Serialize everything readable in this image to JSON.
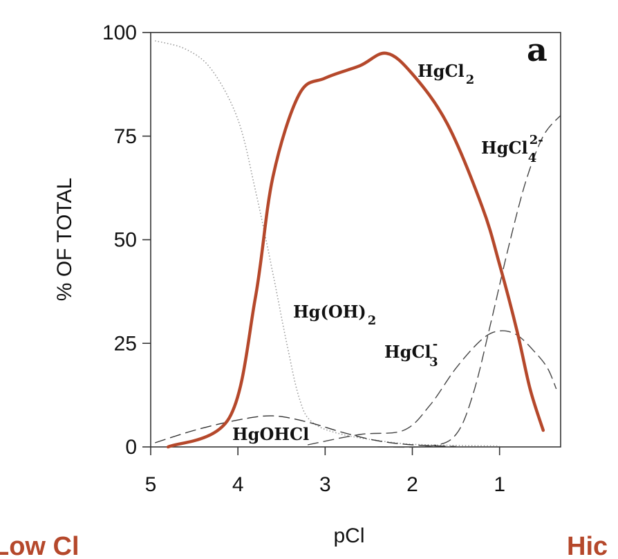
{
  "chart_data": {
    "type": "line",
    "panel_label": "a",
    "xlabel": "pCl",
    "ylabel": "% OF TOTAL",
    "xlim": [
      5.0,
      0.3
    ],
    "ylim": [
      0,
      100
    ],
    "x_ticks": [
      "5",
      "4",
      "3",
      "2",
      "1"
    ],
    "y_ticks": [
      "0",
      "25",
      "50",
      "75",
      "100"
    ],
    "x_reversed": true,
    "series": [
      {
        "name": "Hg(OH)2",
        "style": "dotted",
        "color": "#999999",
        "points": [
          [
            4.95,
            98
          ],
          [
            4.6,
            96
          ],
          [
            4.3,
            91
          ],
          [
            4.0,
            79
          ],
          [
            3.8,
            62
          ],
          [
            3.6,
            42
          ],
          [
            3.45,
            26
          ],
          [
            3.3,
            12
          ],
          [
            3.15,
            6
          ],
          [
            2.8,
            3
          ],
          [
            2.2,
            1
          ],
          [
            1.8,
            0.5
          ],
          [
            1.0,
            0.2
          ]
        ]
      },
      {
        "name": "HgOHCl",
        "style": "dashed",
        "color": "#333333",
        "points": [
          [
            4.95,
            1
          ],
          [
            4.5,
            4
          ],
          [
            4.0,
            6.5
          ],
          [
            3.6,
            7.5
          ],
          [
            3.2,
            6
          ],
          [
            2.8,
            3.5
          ],
          [
            2.4,
            1.5
          ],
          [
            2.0,
            0.5
          ],
          [
            1.5,
            0.1
          ]
        ]
      },
      {
        "name": "HgCl2",
        "style": "solid",
        "color": "#555555",
        "points": [
          [
            4.8,
            0
          ],
          [
            4.1,
            7
          ],
          [
            3.8,
            36
          ],
          [
            3.6,
            65
          ],
          [
            3.3,
            85
          ],
          [
            3.0,
            89
          ],
          [
            2.6,
            92
          ],
          [
            2.3,
            95
          ],
          [
            2.0,
            90
          ],
          [
            1.6,
            78
          ],
          [
            1.2,
            58
          ],
          [
            1.0,
            44
          ],
          [
            0.8,
            28
          ],
          [
            0.65,
            14
          ],
          [
            0.5,
            4
          ]
        ]
      },
      {
        "name": "HgCl3-",
        "style": "dashed",
        "color": "#444444",
        "points": [
          [
            3.2,
            0.5
          ],
          [
            2.6,
            3
          ],
          [
            2.1,
            4
          ],
          [
            1.8,
            10
          ],
          [
            1.5,
            19
          ],
          [
            1.2,
            26
          ],
          [
            1.0,
            28
          ],
          [
            0.8,
            27
          ],
          [
            0.6,
            23
          ],
          [
            0.45,
            19
          ],
          [
            0.35,
            14
          ]
        ]
      },
      {
        "name": "HgCl4 2-",
        "style": "dashed",
        "color": "#444444",
        "points": [
          [
            2.4,
            0
          ],
          [
            1.8,
            0.2
          ],
          [
            1.5,
            3
          ],
          [
            1.3,
            13
          ],
          [
            1.1,
            30
          ],
          [
            0.9,
            48
          ],
          [
            0.7,
            64
          ],
          [
            0.5,
            75
          ],
          [
            0.3,
            80
          ]
        ]
      },
      {
        "name": "HgCl2 highlight",
        "style": "solid",
        "color": "#b5482b",
        "points": [
          [
            4.8,
            0
          ],
          [
            4.1,
            7
          ],
          [
            3.8,
            36
          ],
          [
            3.6,
            65
          ],
          [
            3.3,
            85
          ],
          [
            3.0,
            89
          ],
          [
            2.6,
            92
          ],
          [
            2.3,
            95
          ],
          [
            2.0,
            90
          ],
          [
            1.6,
            78
          ],
          [
            1.2,
            58
          ],
          [
            1.0,
            44
          ],
          [
            0.8,
            28
          ],
          [
            0.65,
            14
          ],
          [
            0.5,
            4
          ]
        ]
      }
    ],
    "annotations": [
      {
        "base": "HgCl",
        "sub": "2",
        "sup": ""
      },
      {
        "base": "HgCl",
        "sub": "4",
        "sup": "2-"
      },
      {
        "base": "Hg(OH)",
        "sub": "2",
        "sup": ""
      },
      {
        "base": "HgCl",
        "sub": "3",
        "sup": "-"
      },
      {
        "base": "HgOHCl",
        "sub": "",
        "sup": ""
      }
    ],
    "corner_labels": [
      "Low Cl",
      "Hic"
    ]
  }
}
